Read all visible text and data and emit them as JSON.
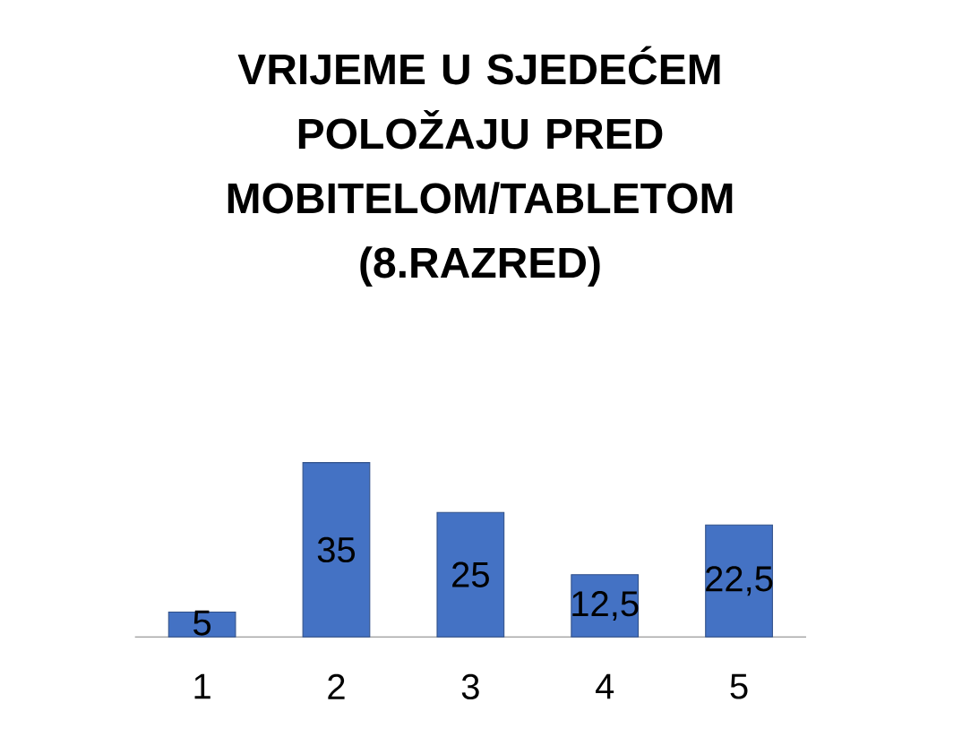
{
  "chart_data": {
    "type": "bar",
    "title": "VRIJEME U SJEDEĆEM POLOŽAJU PRED MOBITELOM/TABLETOM (8.RAZRED)",
    "categories": [
      "1",
      "2",
      "3",
      "4",
      "5"
    ],
    "values": [
      5,
      35,
      25,
      12.5,
      22.5
    ],
    "value_labels": [
      "5",
      "35",
      "25",
      "12,5",
      "22,5"
    ],
    "color": "#4472c4"
  }
}
